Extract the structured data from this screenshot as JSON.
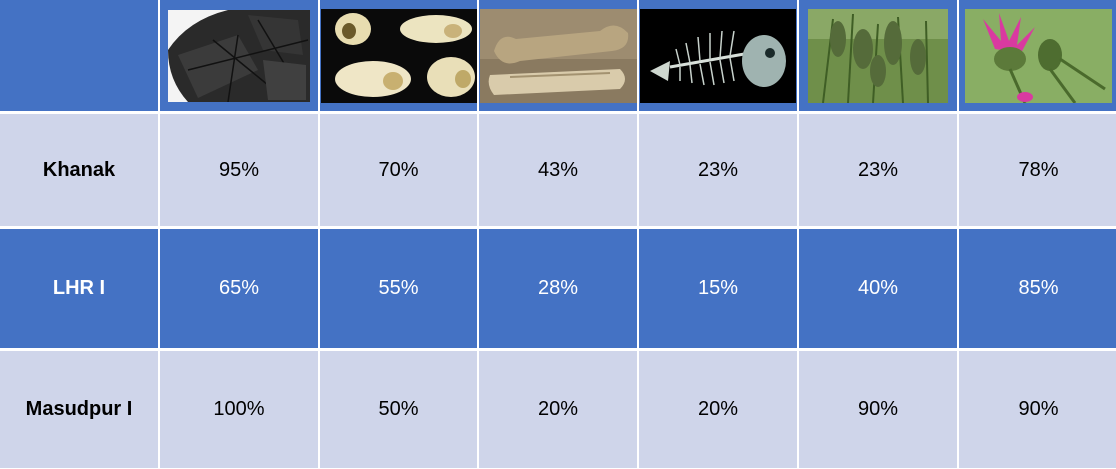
{
  "colors": {
    "header": "#4472c4",
    "band_light": "#cfd5ea",
    "band_dark": "#4472c4",
    "text_dark": "#000000",
    "text_light": "#ffffff"
  },
  "chart_data": {
    "type": "table",
    "column_images": [
      "charcoal-photo",
      "snail-shells-photo",
      "animal-bones-photo",
      "fish-skeleton-photo",
      "millet-plants-photo",
      "thistle-flower-photo"
    ],
    "rows": [
      {
        "label": "Khanak",
        "values": [
          "95%",
          "70%",
          "43%",
          "23%",
          "23%",
          "78%"
        ]
      },
      {
        "label": "LHR I",
        "values": [
          "65%",
          "55%",
          "28%",
          "15%",
          "40%",
          "85%"
        ]
      },
      {
        "label": "Masudpur I",
        "values": [
          "100%",
          "50%",
          "20%",
          "20%",
          "90%",
          "90%"
        ]
      }
    ]
  }
}
